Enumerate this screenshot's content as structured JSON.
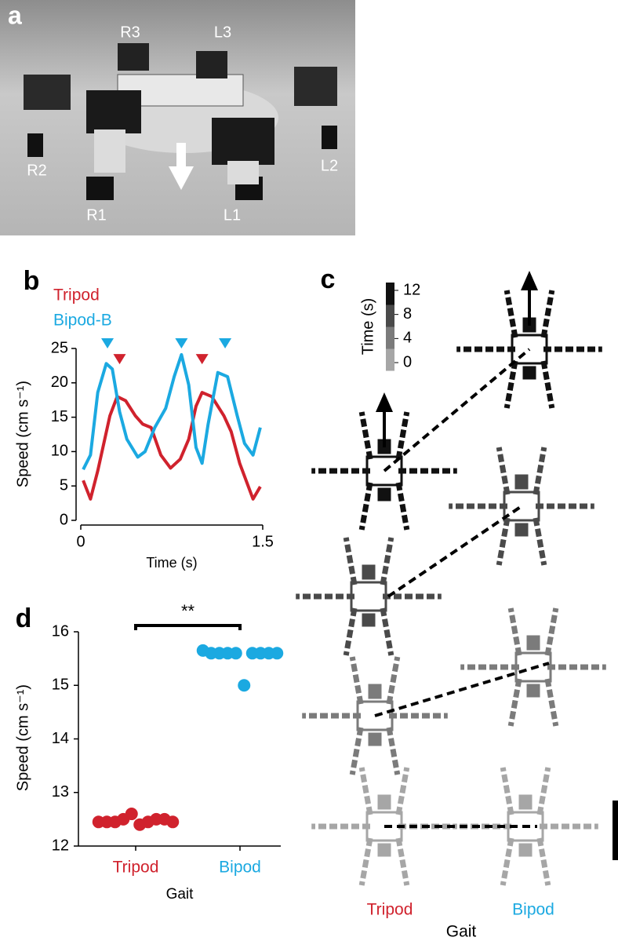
{
  "chart_data": [
    {
      "type": "image",
      "panel": "a",
      "labels": [
        "R3",
        "L3",
        "R2",
        "L2",
        "R1",
        "L1"
      ]
    },
    {
      "type": "line",
      "panel": "b",
      "xlabel": "Time (s)",
      "ylabel": "Speed (cm s⁻¹)",
      "xlim": [
        0,
        1.5
      ],
      "xticks": [
        0,
        1.5
      ],
      "ylim": [
        0,
        25
      ],
      "yticks": [
        0,
        5,
        10,
        15,
        20,
        25
      ],
      "series": [
        {
          "name": "Tripod",
          "color": "#d0222d",
          "x": [
            0.02,
            0.08,
            0.14,
            0.24,
            0.3,
            0.37,
            0.45,
            0.51,
            0.58,
            0.66,
            0.74,
            0.82,
            0.89,
            0.95,
            1.0,
            1.08,
            1.18,
            1.24,
            1.31,
            1.42,
            1.48
          ],
          "values": [
            5.8,
            3.1,
            7.2,
            15.2,
            18,
            17.4,
            15.2,
            14,
            13.5,
            9.5,
            7.6,
            8.9,
            11.8,
            16.6,
            18.6,
            18,
            15.2,
            12.9,
            8.3,
            3.1,
            4.9
          ],
          "markers": {
            "x": [
              0.32,
              1.0
            ],
            "values": [
              23.5,
              23.5
            ]
          }
        },
        {
          "name": "Bipod-B",
          "color": "#1ba9e1",
          "x": [
            0.02,
            0.08,
            0.14,
            0.21,
            0.26,
            0.32,
            0.38,
            0.47,
            0.53,
            0.61,
            0.7,
            0.77,
            0.83,
            0.89,
            0.95,
            1.0,
            1.05,
            1.13,
            1.21,
            1.29,
            1.35,
            1.42,
            1.48
          ],
          "values": [
            7.4,
            9.5,
            18.6,
            22.8,
            22,
            15.8,
            11.8,
            9.2,
            10,
            13.5,
            16.3,
            20.9,
            24.1,
            19.7,
            10.6,
            8.3,
            14,
            21.5,
            20.9,
            15.2,
            11.2,
            9.5,
            13.5
          ],
          "markers": {
            "x": [
              0.22,
              0.83,
              1.19
            ],
            "values": [
              25.8,
              25.8,
              25.8
            ]
          }
        }
      ]
    },
    {
      "type": "trajectory",
      "panel": "c",
      "categories": [
        "Tripod",
        "Bipod"
      ],
      "category_colors": [
        "#d0222d",
        "#1ba9e1"
      ],
      "xlabel": "Gait",
      "colorbar": {
        "title": "Time (s)",
        "lim": [
          -1.3,
          13.3
        ],
        "ticks": [
          0,
          4,
          8,
          12
        ],
        "colors": [
          "#a6a6a6",
          "#7b7b7b",
          "#4a4a4a",
          "#111111"
        ]
      }
    },
    {
      "type": "strip",
      "panel": "d",
      "xlabel": "Gait",
      "ylabel": "Speed (cm s⁻¹)",
      "annotation": "**",
      "categories": [
        "Tripod",
        "Bipod"
      ],
      "ylim": [
        12,
        16
      ],
      "yticks": [
        12,
        13,
        14,
        15,
        16
      ],
      "series": [
        {
          "color": "#d0222d",
          "values": [
            12.45,
            12.45,
            12.45,
            12.5,
            12.6,
            12.4,
            12.45,
            12.5,
            12.5,
            12.45
          ]
        },
        {
          "color": "#1ba9e1",
          "values": [
            15.65,
            15.6,
            15.6,
            15.6,
            15.6,
            15.0,
            15.6,
            15.6,
            15.6,
            15.6
          ]
        }
      ]
    }
  ]
}
